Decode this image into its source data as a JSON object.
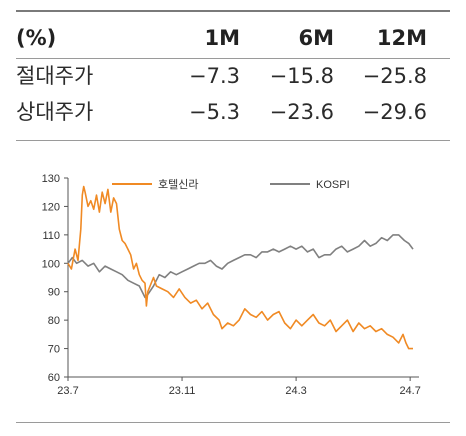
{
  "table": {
    "header": [
      "(%)",
      "1M",
      "6M",
      "12M"
    ],
    "rows": [
      {
        "label": "절대주가",
        "values": [
          "−7.3",
          "−15.8",
          "−25.8"
        ]
      },
      {
        "label": "상대주가",
        "values": [
          "−5.3",
          "−23.6",
          "−29.6"
        ]
      }
    ]
  },
  "chart_data": {
    "type": "line",
    "xlabel": "",
    "ylabel": "",
    "ylim": [
      60,
      130
    ],
    "yticks": [
      "60",
      "70",
      "80",
      "90",
      "100",
      "110",
      "120",
      "130"
    ],
    "xticks": [
      {
        "label": "23.7",
        "x": 0
      },
      {
        "label": "23.11",
        "x": 4
      },
      {
        "label": "24.3",
        "x": 8
      },
      {
        "label": "24.7",
        "x": 12
      }
    ],
    "legend_position": "top",
    "grid": false,
    "colors": {
      "hotel_shilla": "#f08a24",
      "kospi": "#808080"
    },
    "series": [
      {
        "name": "호텔신라",
        "color": "#f08a24",
        "points": [
          [
            0.0,
            100
          ],
          [
            0.12,
            98
          ],
          [
            0.25,
            105
          ],
          [
            0.35,
            101
          ],
          [
            0.45,
            112
          ],
          [
            0.5,
            124
          ],
          [
            0.55,
            127
          ],
          [
            0.6,
            125
          ],
          [
            0.7,
            120
          ],
          [
            0.8,
            122
          ],
          [
            0.9,
            119
          ],
          [
            1.0,
            124
          ],
          [
            1.1,
            118
          ],
          [
            1.2,
            125
          ],
          [
            1.3,
            121
          ],
          [
            1.4,
            126
          ],
          [
            1.5,
            118
          ],
          [
            1.6,
            123
          ],
          [
            1.7,
            121
          ],
          [
            1.8,
            112
          ],
          [
            1.9,
            108
          ],
          [
            2.0,
            107
          ],
          [
            2.1,
            105
          ],
          [
            2.2,
            103
          ],
          [
            2.3,
            98
          ],
          [
            2.4,
            100
          ],
          [
            2.5,
            96
          ],
          [
            2.6,
            94
          ],
          [
            2.7,
            93
          ],
          [
            2.75,
            85
          ],
          [
            2.8,
            90
          ],
          [
            3.0,
            95
          ],
          [
            3.1,
            92
          ],
          [
            3.3,
            91
          ],
          [
            3.5,
            90
          ],
          [
            3.7,
            88
          ],
          [
            3.9,
            91
          ],
          [
            4.1,
            88
          ],
          [
            4.3,
            86
          ],
          [
            4.5,
            87
          ],
          [
            4.7,
            84
          ],
          [
            4.9,
            86
          ],
          [
            5.1,
            82
          ],
          [
            5.3,
            80
          ],
          [
            5.4,
            77
          ],
          [
            5.6,
            79
          ],
          [
            5.8,
            78
          ],
          [
            6.0,
            80
          ],
          [
            6.2,
            84
          ],
          [
            6.4,
            82
          ],
          [
            6.6,
            81
          ],
          [
            6.8,
            83
          ],
          [
            7.0,
            80
          ],
          [
            7.2,
            82
          ],
          [
            7.4,
            83
          ],
          [
            7.6,
            79
          ],
          [
            7.8,
            77
          ],
          [
            8.0,
            80
          ],
          [
            8.2,
            78
          ],
          [
            8.4,
            80
          ],
          [
            8.6,
            82
          ],
          [
            8.8,
            79
          ],
          [
            9.0,
            78
          ],
          [
            9.2,
            80
          ],
          [
            9.4,
            76
          ],
          [
            9.6,
            78
          ],
          [
            9.8,
            80
          ],
          [
            10.0,
            76
          ],
          [
            10.2,
            79
          ],
          [
            10.4,
            77
          ],
          [
            10.6,
            78
          ],
          [
            10.8,
            76
          ],
          [
            11.0,
            77
          ],
          [
            11.2,
            75
          ],
          [
            11.4,
            74
          ],
          [
            11.6,
            72
          ],
          [
            11.75,
            75
          ],
          [
            11.85,
            72
          ],
          [
            11.95,
            70
          ],
          [
            12.1,
            70
          ]
        ]
      },
      {
        "name": "KOSPI",
        "color": "#808080",
        "points": [
          [
            0.0,
            100
          ],
          [
            0.15,
            102
          ],
          [
            0.3,
            100
          ],
          [
            0.5,
            101
          ],
          [
            0.7,
            99
          ],
          [
            0.9,
            100
          ],
          [
            1.1,
            97
          ],
          [
            1.3,
            99
          ],
          [
            1.5,
            98
          ],
          [
            1.7,
            97
          ],
          [
            1.9,
            96
          ],
          [
            2.1,
            94
          ],
          [
            2.3,
            93
          ],
          [
            2.5,
            92
          ],
          [
            2.7,
            88
          ],
          [
            2.8,
            89
          ],
          [
            3.0,
            92
          ],
          [
            3.2,
            96
          ],
          [
            3.4,
            95
          ],
          [
            3.6,
            97
          ],
          [
            3.8,
            96
          ],
          [
            4.0,
            97
          ],
          [
            4.2,
            98
          ],
          [
            4.4,
            99
          ],
          [
            4.6,
            100
          ],
          [
            4.8,
            100
          ],
          [
            5.0,
            101
          ],
          [
            5.2,
            99
          ],
          [
            5.4,
            98
          ],
          [
            5.6,
            100
          ],
          [
            5.8,
            101
          ],
          [
            6.0,
            102
          ],
          [
            6.2,
            103
          ],
          [
            6.4,
            103
          ],
          [
            6.6,
            102
          ],
          [
            6.8,
            104
          ],
          [
            7.0,
            104
          ],
          [
            7.2,
            105
          ],
          [
            7.4,
            104
          ],
          [
            7.6,
            105
          ],
          [
            7.8,
            106
          ],
          [
            8.0,
            105
          ],
          [
            8.2,
            106
          ],
          [
            8.4,
            104
          ],
          [
            8.6,
            105
          ],
          [
            8.8,
            102
          ],
          [
            9.0,
            103
          ],
          [
            9.2,
            103
          ],
          [
            9.4,
            105
          ],
          [
            9.6,
            106
          ],
          [
            9.8,
            104
          ],
          [
            10.0,
            105
          ],
          [
            10.2,
            106
          ],
          [
            10.4,
            108
          ],
          [
            10.6,
            106
          ],
          [
            10.8,
            107
          ],
          [
            11.0,
            109
          ],
          [
            11.2,
            108
          ],
          [
            11.4,
            110
          ],
          [
            11.6,
            110
          ],
          [
            11.8,
            108
          ],
          [
            11.95,
            107
          ],
          [
            12.1,
            105
          ]
        ]
      }
    ]
  }
}
